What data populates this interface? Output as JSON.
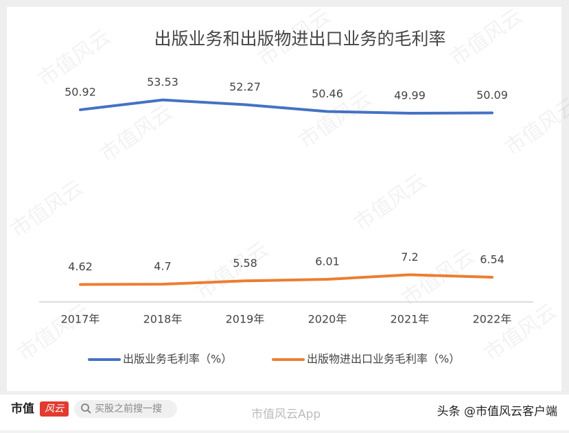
{
  "chart_data": {
    "type": "line",
    "title": "出版业务和出版物进出口业务的毛利率",
    "categories": [
      "2017年",
      "2018年",
      "2019年",
      "2020年",
      "2021年",
      "2022年"
    ],
    "series": [
      {
        "name": "出版业务毛利率（%）",
        "color": "#4472c4",
        "values": [
          50.92,
          53.53,
          52.27,
          50.46,
          49.99,
          50.09
        ]
      },
      {
        "name": "出版物进出口业务毛利率（%）",
        "color": "#ed7d31",
        "values": [
          4.62,
          4.7,
          5.58,
          6.01,
          7.2,
          6.54
        ]
      }
    ],
    "ylim": [
      0,
      60
    ],
    "legend": "bottom"
  },
  "watermark": "市值风云",
  "footer": {
    "logo": "市值",
    "logo_badge": "风云",
    "search": "买股之前搜一搜",
    "app": "市值风云App",
    "credit": "头条 @市值风云客户端"
  }
}
